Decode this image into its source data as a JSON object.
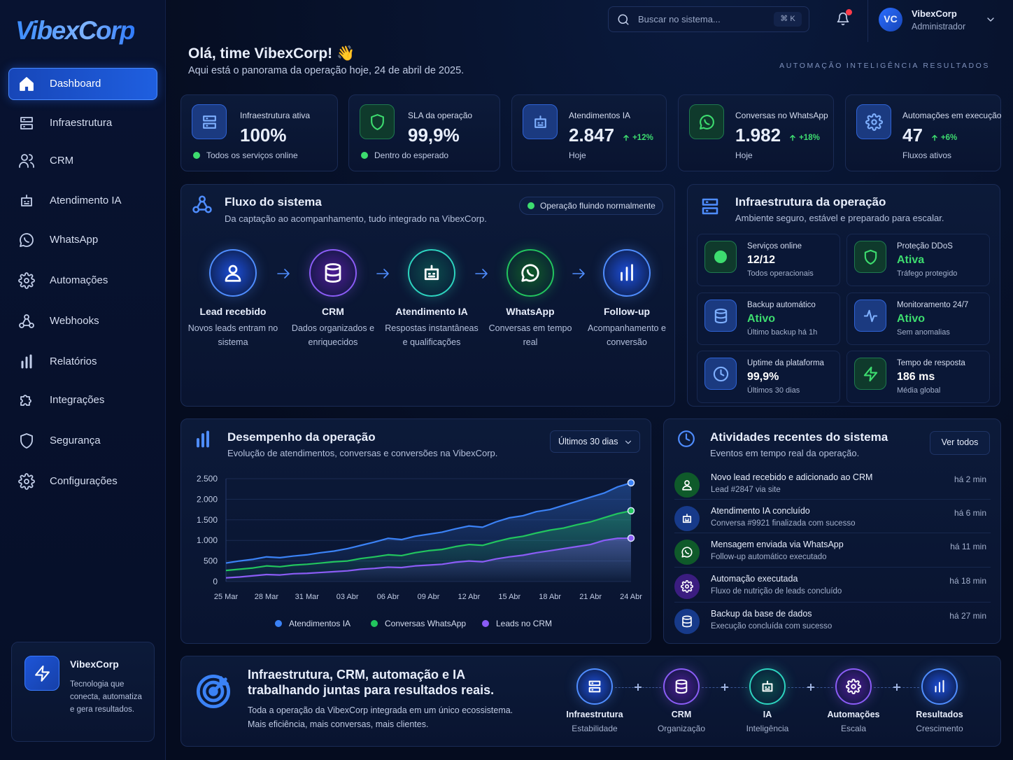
{
  "brand": "VibexCorp",
  "sidebar": {
    "nav": [
      "Dashboard",
      "Infraestrutura",
      "CRM",
      "Atendimento IA",
      "WhatsApp",
      "Automações",
      "Webhooks",
      "Relatórios",
      "Integrações",
      "Segurança",
      "Configurações"
    ],
    "promo": {
      "title": "VibexCorp",
      "text": "Tecnologia que conecta, automatiza e gera resultados."
    }
  },
  "topbar": {
    "search": "Buscar no sistema...",
    "shortcut": "⌘ K",
    "initials": "VC",
    "user": "VibexCorp",
    "role": "Administrador"
  },
  "header": {
    "greeting": "Olá, time VibexCorp! 👋",
    "subtitle": "Aqui está o panorama da operação hoje, 24 de abril de 2025.",
    "tags": [
      "AUTOMAÇÃO",
      "INTELIGÊNCIA",
      "RESULTADOS"
    ]
  },
  "kpis": [
    {
      "label": "Infraestrutura ativa",
      "value": "100%",
      "note": "Todos os serviços online"
    },
    {
      "label": "SLA da operação",
      "value": "99,9%",
      "note": "Dentro do esperado"
    },
    {
      "label": "Atendimentos IA",
      "value": "2.847",
      "delta": "+12%",
      "note": "Hoje"
    },
    {
      "label": "Conversas no WhatsApp",
      "value": "1.982",
      "delta": "+18%",
      "note": "Hoje"
    },
    {
      "label": "Automações em execução",
      "value": "47",
      "delta": "+6%",
      "note": "Fluxos ativos"
    }
  ],
  "flow": {
    "title": "Fluxo do sistema",
    "subtitle": "Da captação ao acompanhamento, tudo integrado na VibexCorp.",
    "status": "Operação fluindo normalmente",
    "steps": [
      {
        "title": "Lead recebido",
        "desc": "Novos leads entram no sistema"
      },
      {
        "title": "CRM",
        "desc": "Dados organizados e enriquecidos"
      },
      {
        "title": "Atendimento IA",
        "desc": "Respostas instantâneas e qualificações"
      },
      {
        "title": "WhatsApp",
        "desc": "Conversas em tempo real"
      },
      {
        "title": "Follow-up",
        "desc": "Acompanhamento e conversão"
      }
    ]
  },
  "infra": {
    "title": "Infraestrutura da operação",
    "subtitle": "Ambiente seguro, estável e preparado para escalar.",
    "items": [
      {
        "label": "Serviços online",
        "value": "12/12",
        "note": "Todos operacionais",
        "value_color": "#ffffff"
      },
      {
        "label": "Proteção DDoS",
        "value": "Ativa",
        "note": "Tráfego protegido",
        "value_color": "#3ddc6f"
      },
      {
        "label": "Backup automático",
        "value": "Ativo",
        "note": "Último backup há 1h",
        "value_color": "#3ddc6f"
      },
      {
        "label": "Monitoramento 24/7",
        "value": "Ativo",
        "note": "Sem anomalias",
        "value_color": "#3ddc6f"
      },
      {
        "label": "Uptime da plataforma",
        "value": "99,9%",
        "note": "Últimos 30 dias",
        "value_color": "#ffffff"
      },
      {
        "label": "Tempo de resposta",
        "value": "186 ms",
        "note": "Média global",
        "value_color": "#ffffff"
      }
    ]
  },
  "chart_data": {
    "type": "line",
    "title": "Desempenho da operação",
    "subtitle": "Evolução de atendimentos, conversas e conversões na VibexCorp.",
    "range": "Últimos 30 dias",
    "categories": [
      "25 Mar",
      null,
      null,
      "28 Mar",
      null,
      null,
      "31 Mar",
      null,
      null,
      "03 Abr",
      null,
      null,
      "06 Abr",
      null,
      null,
      "09 Abr",
      null,
      null,
      "12 Abr",
      null,
      null,
      "15 Abr",
      null,
      null,
      "18 Abr",
      null,
      null,
      "21 Abr",
      null,
      null,
      "24 Abr"
    ],
    "ylim": [
      0,
      2500
    ],
    "yticks": [
      0,
      500,
      {
        "value": 1000,
        "label": "1.000"
      },
      {
        "value": 1500,
        "label": "1.500"
      },
      {
        "value": 2000,
        "label": "2.000"
      },
      {
        "value": 2500,
        "label": "2.500"
      }
    ],
    "grid": true,
    "series": [
      {
        "name": "Atendimentos IA",
        "color": "#3b82f6",
        "values": [
          450,
          500,
          540,
          600,
          580,
          620,
          650,
          700,
          740,
          800,
          880,
          960,
          1050,
          1020,
          1100,
          1150,
          1200,
          1280,
          1350,
          1320,
          1450,
          1550,
          1600,
          1700,
          1750,
          1850,
          1950,
          2050,
          2150,
          2300,
          2400
        ]
      },
      {
        "name": "Conversas WhatsApp",
        "color": "#22c55e",
        "values": [
          270,
          300,
          330,
          380,
          360,
          400,
          420,
          450,
          480,
          500,
          560,
          600,
          650,
          630,
          700,
          750,
          780,
          850,
          900,
          880,
          970,
          1050,
          1100,
          1180,
          1250,
          1300,
          1380,
          1450,
          1550,
          1650,
          1720
        ]
      },
      {
        "name": "Leads no CRM",
        "color": "#8b5cf6",
        "values": [
          90,
          110,
          140,
          170,
          160,
          190,
          200,
          220,
          240,
          260,
          300,
          320,
          350,
          340,
          380,
          400,
          420,
          470,
          500,
          480,
          550,
          600,
          640,
          700,
          750,
          800,
          850,
          900,
          1000,
          1050,
          1055
        ]
      }
    ]
  },
  "activities": {
    "title": "Atividades recentes do sistema",
    "subtitle": "Eventos em tempo real da operação.",
    "button": "Ver todos",
    "items": [
      {
        "title": "Novo lead recebido e adicionado ao CRM",
        "detail": "Lead #2847 via site",
        "time": "há 2 min"
      },
      {
        "title": "Atendimento IA concluído",
        "detail": "Conversa #9921 finalizada com sucesso",
        "time": "há 6 min"
      },
      {
        "title": "Mensagem enviada via WhatsApp",
        "detail": "Follow-up automático executado",
        "time": "há 11 min"
      },
      {
        "title": "Automação executada",
        "detail": "Fluxo de nutrição de leads concluído",
        "time": "há 18 min"
      },
      {
        "title": "Backup da base de dados",
        "detail": "Execução concluída com sucesso",
        "time": "há 27 min"
      }
    ]
  },
  "footer": {
    "title_lines": [
      "Infraestrutura, CRM, automação e IA",
      "trabalhando juntas para resultados reais."
    ],
    "text_lines": [
      "Toda a operação da VibexCorp integrada em um único ecossistema.",
      "Mais eficiência, mais conversas, mais clientes."
    ],
    "steps": [
      {
        "title": "Infraestrutura",
        "sub": "Estabilidade"
      },
      {
        "title": "CRM",
        "sub": "Organização"
      },
      {
        "title": "IA",
        "sub": "Inteligência"
      },
      {
        "title": "Automações",
        "sub": "Escala"
      },
      {
        "title": "Resultados",
        "sub": "Crescimento"
      }
    ]
  }
}
